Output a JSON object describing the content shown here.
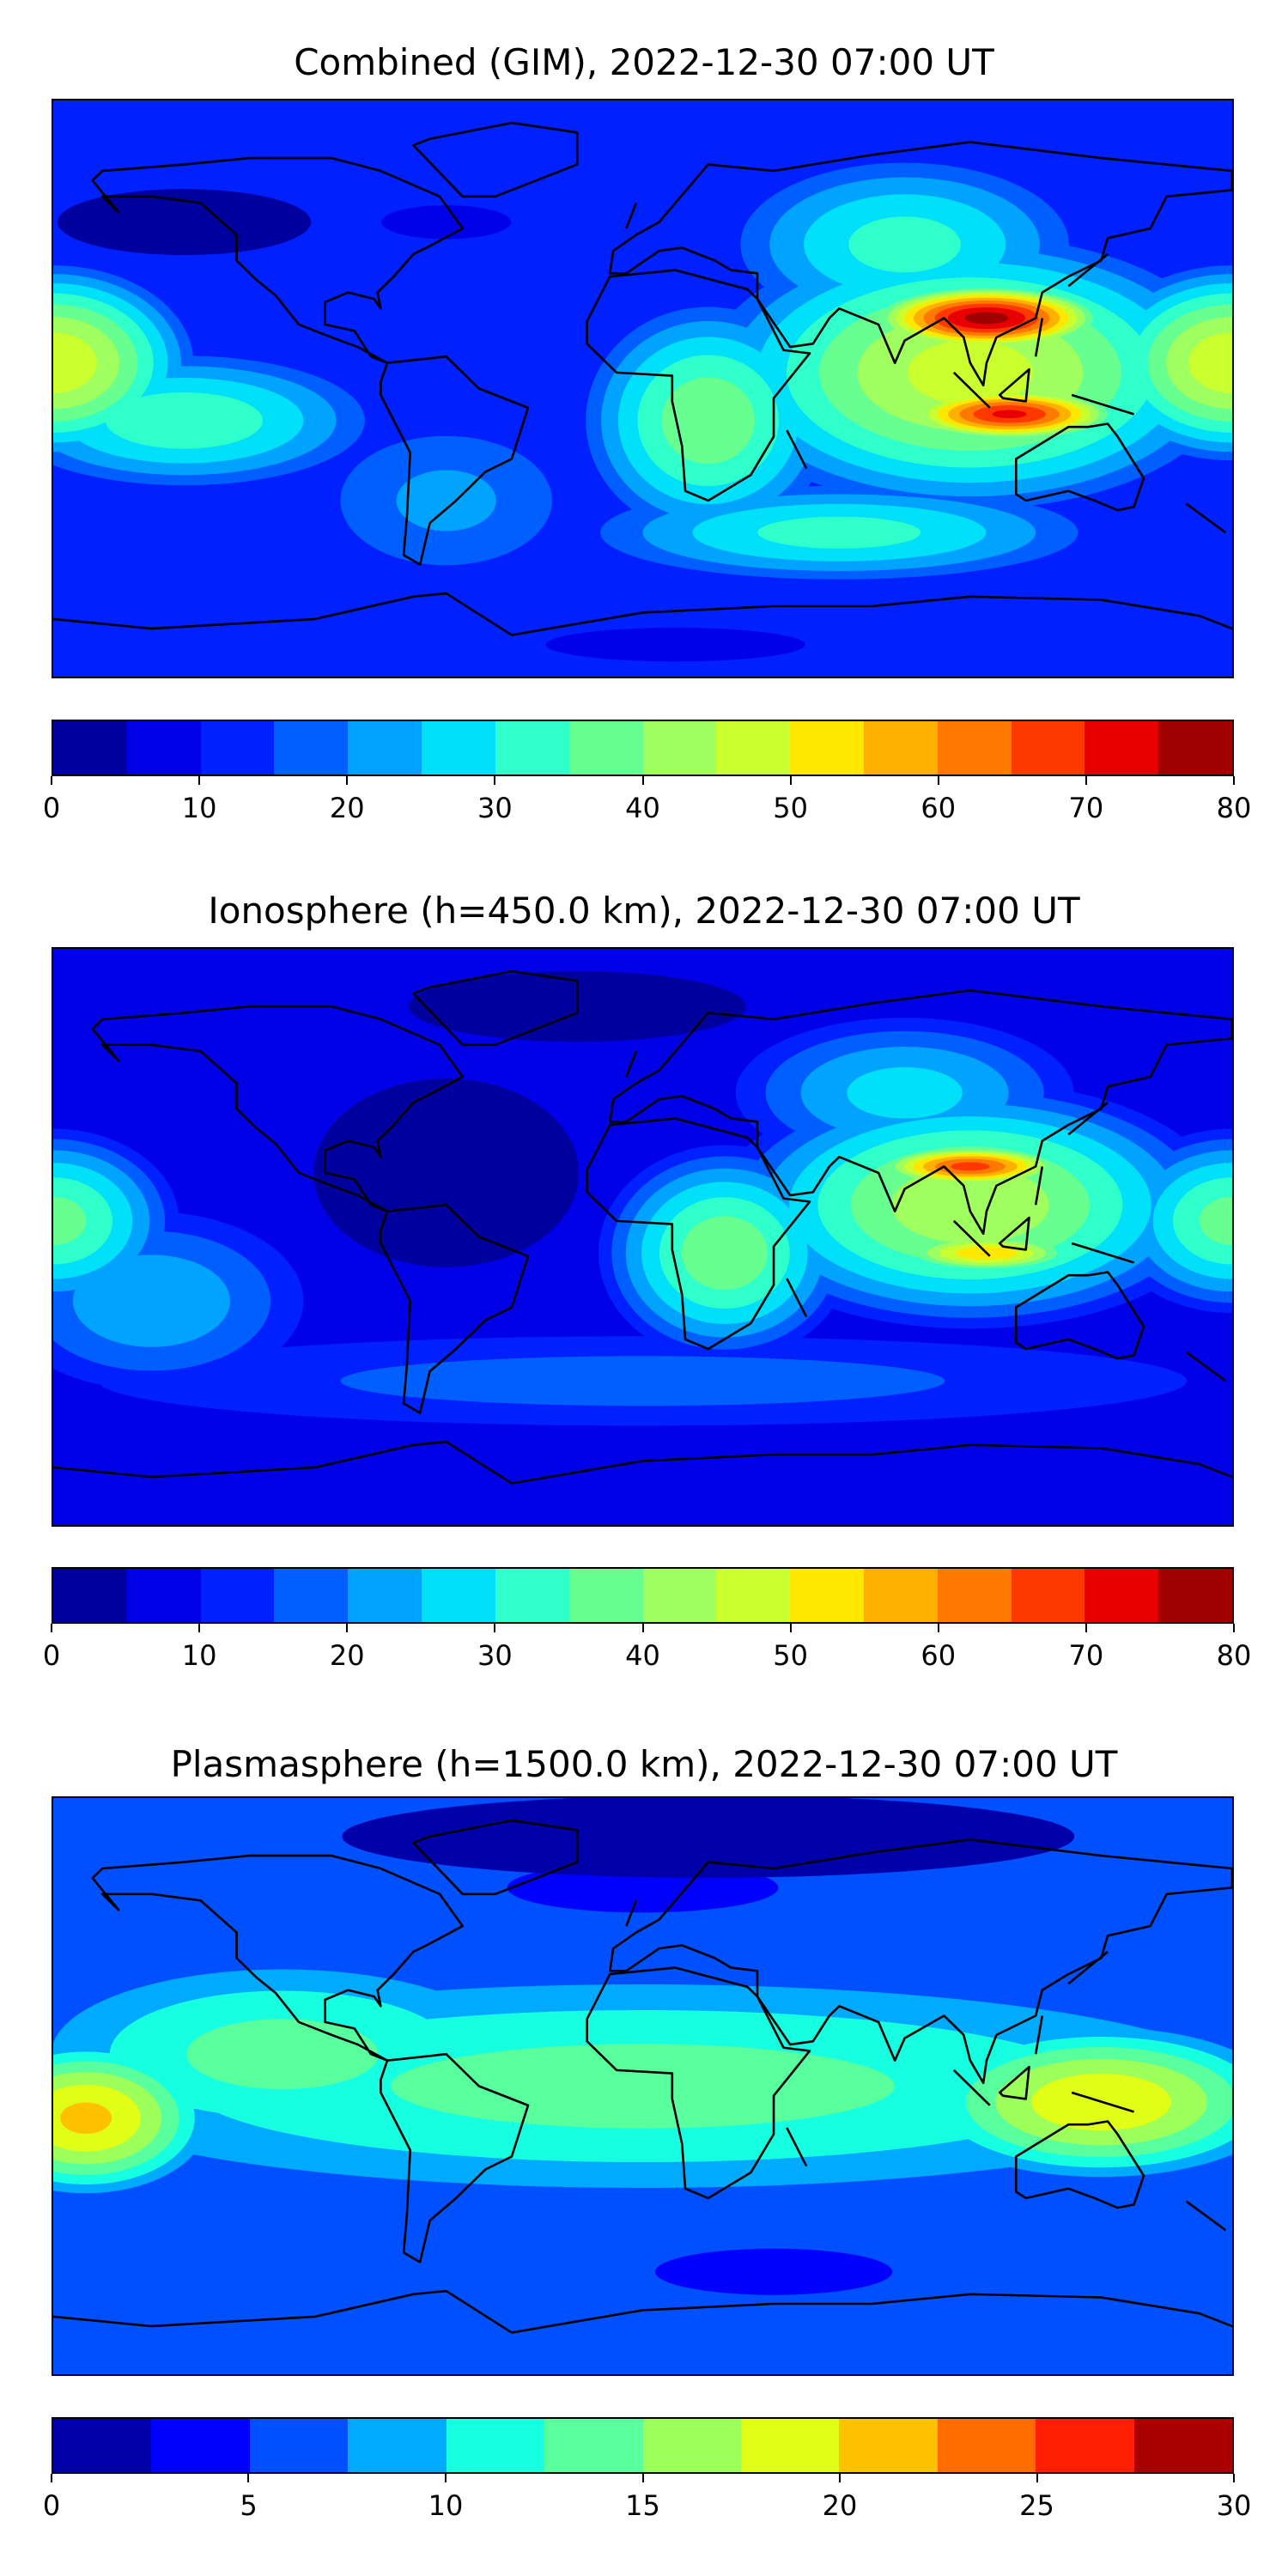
{
  "chart_data": [
    {
      "type": "heatmap",
      "title": "Combined (GIM), 2022-12-30 07:00 UT",
      "xlim": [
        -180,
        180
      ],
      "ylim": [
        -90,
        90
      ],
      "colorbar": {
        "ticks": [
          0,
          10,
          20,
          30,
          40,
          50,
          60,
          70,
          80
        ],
        "boundaries": [
          0,
          5,
          10,
          15,
          20,
          25,
          30,
          35,
          40,
          45,
          50,
          55,
          60,
          65,
          70,
          75,
          80
        ],
        "colors": [
          "#00009f",
          "#0000e8",
          "#0020ff",
          "#0060ff",
          "#00a4ff",
          "#00e0f8",
          "#2fffca",
          "#66ff90",
          "#9fff5f",
          "#caff2f",
          "#ffe800",
          "#ffb000",
          "#ff7800",
          "#ff3800",
          "#e80000",
          "#9f0000"
        ]
      },
      "background": 12,
      "features": [
        {
          "lon": -140,
          "lat": 52,
          "rlon": 45,
          "rlat": 12,
          "value": 3
        },
        {
          "lon": -60,
          "lat": 52,
          "rlon": 30,
          "rlat": 8,
          "value": 8
        },
        {
          "lon": 10,
          "lat": -80,
          "rlon": 60,
          "rlat": 8,
          "value": 8
        },
        {
          "lon": -60,
          "lat": -35,
          "rlon": 40,
          "rlat": 25,
          "value": 22
        },
        {
          "lon": -140,
          "lat": -10,
          "rlon": 60,
          "rlat": 22,
          "value": 35
        },
        {
          "lon": -180,
          "lat": 8,
          "rlon": 45,
          "rlat": 32,
          "value": 50
        },
        {
          "lon": 180,
          "lat": 8,
          "rlon": 45,
          "rlat": 32,
          "value": 50
        },
        {
          "lon": 60,
          "lat": -45,
          "rlon": 80,
          "rlat": 16,
          "value": 33
        },
        {
          "lon": 20,
          "lat": -10,
          "rlon": 40,
          "rlat": 38,
          "value": 40
        },
        {
          "lon": 80,
          "lat": 45,
          "rlon": 55,
          "rlat": 28,
          "value": 33
        },
        {
          "lon": 100,
          "lat": 5,
          "rlon": 85,
          "rlat": 45,
          "value": 48
        },
        {
          "lon": 105,
          "lat": 22,
          "rlon": 42,
          "rlat": 12,
          "value": 78
        },
        {
          "lon": 112,
          "lat": -8,
          "rlon": 40,
          "rlat": 10,
          "value": 72
        }
      ]
    },
    {
      "type": "heatmap",
      "title": "Ionosphere  (h=450.0 km), 2022-12-30 07:00 UT",
      "xlim": [
        -180,
        180
      ],
      "ylim": [
        -90,
        90
      ],
      "colorbar": {
        "ticks": [
          0,
          10,
          20,
          30,
          40,
          50,
          60,
          70,
          80
        ],
        "boundaries": [
          0,
          5,
          10,
          15,
          20,
          25,
          30,
          35,
          40,
          45,
          50,
          55,
          60,
          65,
          70,
          75,
          80
        ],
        "colors": [
          "#00009f",
          "#0000e8",
          "#0020ff",
          "#0060ff",
          "#00a4ff",
          "#00e0f8",
          "#2fffca",
          "#66ff90",
          "#9fff5f",
          "#caff2f",
          "#ffe800",
          "#ffb000",
          "#ff7800",
          "#ff3800",
          "#e80000",
          "#9f0000"
        ]
      },
      "background": 8,
      "features": [
        {
          "lon": -60,
          "lat": 20,
          "rlon": 55,
          "rlat": 40,
          "value": 3
        },
        {
          "lon": -20,
          "lat": 72,
          "rlon": 70,
          "rlat": 15,
          "value": 3
        },
        {
          "lon": 0,
          "lat": -45,
          "rlon": 190,
          "rlat": 16,
          "value": 18
        },
        {
          "lon": -150,
          "lat": -20,
          "rlon": 50,
          "rlat": 30,
          "value": 25
        },
        {
          "lon": -180,
          "lat": 5,
          "rlon": 40,
          "rlat": 30,
          "value": 38
        },
        {
          "lon": 180,
          "lat": 5,
          "rlon": 40,
          "rlat": 30,
          "value": 38
        },
        {
          "lon": 80,
          "lat": 45,
          "rlon": 55,
          "rlat": 25,
          "value": 28
        },
        {
          "lon": 25,
          "lat": -5,
          "rlon": 40,
          "rlat": 35,
          "value": 40
        },
        {
          "lon": 100,
          "lat": 10,
          "rlon": 80,
          "rlat": 40,
          "value": 45
        },
        {
          "lon": 100,
          "lat": 22,
          "rlon": 36,
          "rlat": 8,
          "value": 68
        },
        {
          "lon": 105,
          "lat": -5,
          "rlon": 36,
          "rlat": 8,
          "value": 55
        }
      ]
    },
    {
      "type": "heatmap",
      "title": "Plasmasphere (h=1500.0 km), 2022-12-30 07:00 UT",
      "xlim": [
        -180,
        180
      ],
      "ylim": [
        -90,
        90
      ],
      "colorbar": {
        "ticks": [
          0,
          5,
          10,
          15,
          20,
          25,
          30
        ],
        "boundaries": [
          0,
          2.5,
          5,
          7.5,
          10,
          12.5,
          15,
          17.5,
          20,
          22.5,
          25,
          27.5,
          30
        ],
        "colors": [
          "#0000aa",
          "#0000ff",
          "#0050ff",
          "#00aaff",
          "#16ffe1",
          "#5aff9d",
          "#9dff5a",
          "#e1ff16",
          "#ffc200",
          "#ff6c00",
          "#ff1e00",
          "#aa0000"
        ]
      },
      "background": 6,
      "features": [
        {
          "lon": 20,
          "lat": 78,
          "rlon": 130,
          "rlat": 15,
          "value": 1.5
        },
        {
          "lon": 0,
          "lat": 62,
          "rlon": 80,
          "rlat": 15,
          "value": 3
        },
        {
          "lon": 40,
          "lat": -58,
          "rlon": 70,
          "rlat": 14,
          "value": 3
        },
        {
          "lon": 0,
          "lat": 0,
          "rlon": 210,
          "rlat": 36,
          "value": 14
        },
        {
          "lon": -110,
          "lat": 10,
          "rlon": 80,
          "rlat": 30,
          "value": 14
        },
        {
          "lon": -170,
          "lat": -10,
          "rlon": 40,
          "rlat": 25,
          "value": 21
        },
        {
          "lon": 140,
          "lat": -5,
          "rlon": 60,
          "rlat": 25,
          "value": 20
        }
      ]
    }
  ]
}
